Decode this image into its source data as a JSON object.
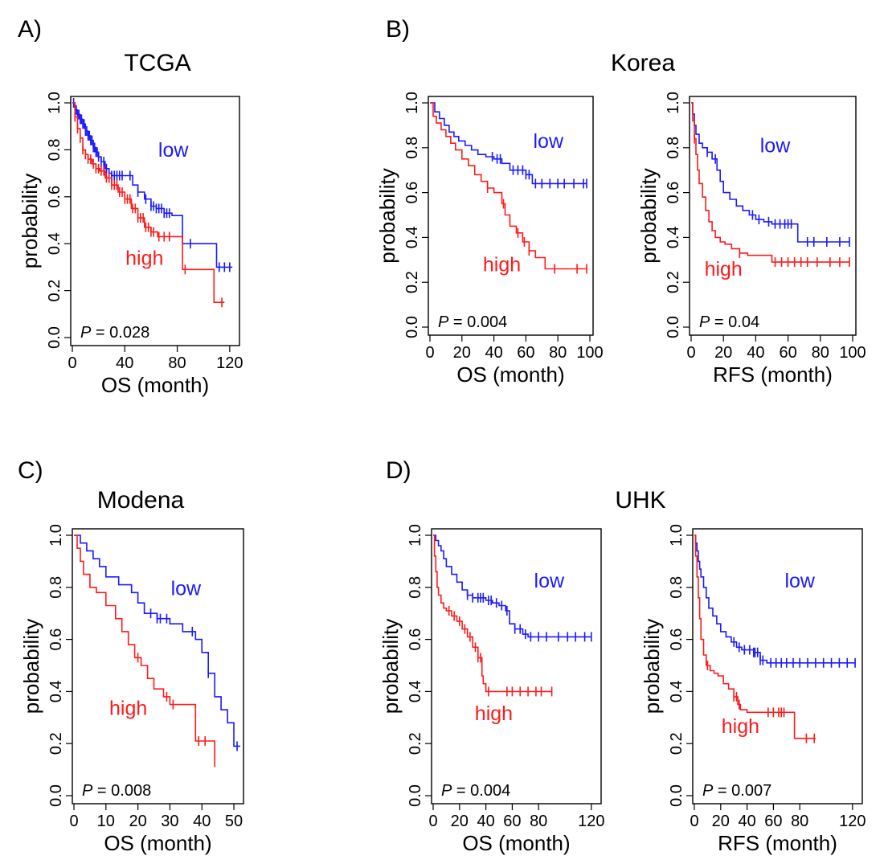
{
  "panel_labels": [
    "A)",
    "B)",
    "C)",
    "D)"
  ],
  "group_titles": [
    "TCGA",
    "Korea",
    "Modena",
    "UHK"
  ],
  "colors": {
    "low": "#1a1aff",
    "high": "#ff1a1a",
    "axis": "#000000"
  },
  "chart_data": [
    {
      "type": "line",
      "title": "TCGA",
      "xlabel": "OS (month)",
      "ylabel": "probability",
      "xlim": [
        0,
        125
      ],
      "ylim": [
        0,
        1
      ],
      "xticks": [
        0,
        40,
        80,
        120
      ],
      "yticks": [
        0.0,
        0.2,
        0.4,
        0.6,
        0.8,
        1.0
      ],
      "pvalue_prefix": "P",
      "pvalue_text": " = 0.028",
      "series": [
        {
          "name": "low",
          "color": "#1a1aff",
          "x": [
            0,
            2,
            4,
            6,
            8,
            10,
            12,
            14,
            16,
            18,
            20,
            22,
            25,
            28,
            30,
            34,
            40,
            46,
            50,
            55,
            60,
            64,
            70,
            76,
            80,
            84,
            96,
            102,
            110,
            122
          ],
          "y": [
            1.0,
            0.97,
            0.95,
            0.93,
            0.91,
            0.88,
            0.86,
            0.84,
            0.81,
            0.79,
            0.77,
            0.75,
            0.72,
            0.7,
            0.69,
            0.69,
            0.69,
            0.65,
            0.62,
            0.59,
            0.56,
            0.55,
            0.53,
            0.52,
            0.52,
            0.4,
            0.4,
            0.4,
            0.3,
            0.3
          ],
          "censor_x": [
            1,
            2,
            3,
            4,
            5,
            6,
            7,
            8,
            9,
            10,
            11,
            12,
            13,
            14,
            15,
            16,
            17,
            18,
            19,
            20,
            22,
            24,
            26,
            28,
            30,
            32,
            34,
            36,
            38,
            44,
            50,
            56,
            60,
            62,
            64,
            66,
            68,
            70,
            72,
            74,
            90,
            112,
            116,
            120
          ]
        },
        {
          "name": "high",
          "color": "#ff1a1a",
          "x": [
            0,
            2,
            4,
            6,
            8,
            10,
            12,
            15,
            18,
            21,
            25,
            30,
            35,
            40,
            45,
            50,
            55,
            60,
            65,
            70,
            80,
            84,
            90,
            100,
            107,
            108,
            116
          ],
          "y": [
            1.0,
            0.94,
            0.89,
            0.85,
            0.8,
            0.78,
            0.76,
            0.74,
            0.72,
            0.71,
            0.68,
            0.65,
            0.62,
            0.59,
            0.55,
            0.51,
            0.47,
            0.45,
            0.43,
            0.43,
            0.43,
            0.29,
            0.29,
            0.29,
            0.29,
            0.15,
            0.15
          ],
          "censor_x": [
            2,
            4,
            6,
            8,
            10,
            12,
            14,
            16,
            18,
            20,
            22,
            24,
            26,
            28,
            30,
            32,
            34,
            36,
            38,
            40,
            42,
            44,
            46,
            48,
            50,
            52,
            54,
            56,
            58,
            60,
            62,
            66,
            70,
            74,
            86,
            114
          ]
        }
      ],
      "series_labels": [
        {
          "name": "low",
          "color": "#1a1aff",
          "x": 77,
          "y": 0.77
        },
        {
          "name": "high",
          "color": "#ff1a1a",
          "x": 55,
          "y": 0.31
        }
      ]
    },
    {
      "type": "line",
      "title": "Korea",
      "xlabel": "OS (month)",
      "ylabel": "probability",
      "xlim": [
        0,
        100
      ],
      "ylim": [
        0,
        1
      ],
      "xticks": [
        0,
        20,
        40,
        60,
        80,
        100
      ],
      "yticks": [
        0.0,
        0.2,
        0.4,
        0.6,
        0.8,
        1.0
      ],
      "pvalue_prefix": "P",
      "pvalue_text": " = 0.004",
      "series": [
        {
          "name": "low",
          "color": "#1a1aff",
          "x": [
            0,
            3,
            6,
            9,
            12,
            15,
            18,
            22,
            26,
            30,
            35,
            40,
            45,
            50,
            55,
            60,
            64,
            70,
            80,
            98
          ],
          "y": [
            1.0,
            0.96,
            0.93,
            0.9,
            0.87,
            0.85,
            0.83,
            0.81,
            0.79,
            0.77,
            0.76,
            0.75,
            0.73,
            0.7,
            0.7,
            0.68,
            0.64,
            0.64,
            0.64,
            0.64
          ],
          "censor_x": [
            39,
            42,
            44,
            52,
            55,
            58,
            60,
            62,
            66,
            70,
            75,
            80,
            84,
            90,
            96,
            98
          ]
        },
        {
          "name": "high",
          "color": "#ff1a1a",
          "x": [
            0,
            2,
            4,
            7,
            10,
            13,
            16,
            20,
            24,
            28,
            32,
            36,
            40,
            45,
            47,
            50,
            54,
            58,
            62,
            66,
            72,
            80,
            98
          ],
          "y": [
            1.0,
            0.94,
            0.91,
            0.88,
            0.85,
            0.82,
            0.79,
            0.75,
            0.72,
            0.68,
            0.65,
            0.62,
            0.6,
            0.55,
            0.5,
            0.45,
            0.42,
            0.38,
            0.34,
            0.31,
            0.26,
            0.26,
            0.26
          ],
          "censor_x": [
            36,
            46,
            55,
            59,
            62,
            78,
            92,
            98
          ]
        }
      ],
      "series_labels": [
        {
          "name": "low",
          "color": "#1a1aff",
          "x": 74,
          "y": 0.8
        },
        {
          "name": "high",
          "color": "#ff1a1a",
          "x": 45,
          "y": 0.25
        }
      ]
    },
    {
      "type": "line",
      "title": "",
      "xlabel": "RFS (month)",
      "ylabel": "probability",
      "xlim": [
        0,
        100
      ],
      "ylim": [
        0,
        1
      ],
      "xticks": [
        0,
        20,
        40,
        60,
        80,
        100
      ],
      "yticks": [
        0.0,
        0.2,
        0.4,
        0.6,
        0.8,
        1.0
      ],
      "pvalue_prefix": "P",
      "pvalue_text": " = 0.04",
      "series": [
        {
          "name": "low",
          "color": "#1a1aff",
          "x": [
            0,
            1,
            2,
            3,
            5,
            7,
            10,
            13,
            16,
            18,
            20,
            24,
            28,
            32,
            36,
            40,
            45,
            50,
            55,
            60,
            66,
            70,
            80,
            98
          ],
          "y": [
            1.0,
            0.95,
            0.9,
            0.86,
            0.82,
            0.8,
            0.78,
            0.75,
            0.7,
            0.65,
            0.6,
            0.57,
            0.54,
            0.52,
            0.5,
            0.48,
            0.47,
            0.46,
            0.46,
            0.46,
            0.38,
            0.38,
            0.38,
            0.38
          ],
          "censor_x": [
            10,
            15,
            38,
            42,
            48,
            52,
            55,
            58,
            60,
            62,
            72,
            76,
            84,
            92,
            98
          ]
        },
        {
          "name": "high",
          "color": "#ff1a1a",
          "x": [
            0,
            1,
            2,
            3,
            4,
            5,
            7,
            9,
            11,
            13,
            15,
            18,
            21,
            25,
            30,
            35,
            50,
            60,
            80,
            98
          ],
          "y": [
            1.0,
            0.92,
            0.84,
            0.77,
            0.7,
            0.64,
            0.58,
            0.52,
            0.47,
            0.43,
            0.4,
            0.38,
            0.37,
            0.35,
            0.33,
            0.32,
            0.29,
            0.29,
            0.29,
            0.29
          ],
          "censor_x": [
            2,
            30,
            52,
            56,
            60,
            64,
            68,
            72,
            78,
            86,
            92,
            98
          ]
        }
      ],
      "series_labels": [
        {
          "name": "low",
          "color": "#1a1aff",
          "x": 52,
          "y": 0.78
        },
        {
          "name": "high",
          "color": "#ff1a1a",
          "x": 20,
          "y": 0.23
        }
      ]
    },
    {
      "type": "line",
      "title": "Modena",
      "xlabel": "OS (month)",
      "ylabel": "probability",
      "xlim": [
        0,
        52
      ],
      "ylim": [
        0,
        1
      ],
      "xticks": [
        0,
        10,
        20,
        30,
        40,
        50
      ],
      "yticks": [
        0.0,
        0.2,
        0.4,
        0.6,
        0.8,
        1.0
      ],
      "pvalue_prefix": "P",
      "pvalue_text": " = 0.008",
      "series": [
        {
          "name": "low",
          "color": "#1a1aff",
          "x": [
            0,
            2,
            4,
            6,
            8,
            10,
            14,
            18,
            20,
            22,
            26,
            30,
            34,
            38,
            40,
            42,
            44,
            46,
            48,
            50,
            52
          ],
          "y": [
            1.0,
            0.97,
            0.94,
            0.91,
            0.88,
            0.84,
            0.81,
            0.78,
            0.74,
            0.7,
            0.68,
            0.66,
            0.63,
            0.6,
            0.55,
            0.47,
            0.38,
            0.33,
            0.28,
            0.19,
            0.19
          ],
          "censor_x": [
            24,
            26,
            27,
            29,
            37,
            42,
            51
          ]
        },
        {
          "name": "high",
          "color": "#ff1a1a",
          "x": [
            0,
            1,
            2,
            3,
            5,
            7,
            10,
            13,
            15,
            17,
            19,
            21,
            23,
            25,
            28,
            30,
            37,
            38,
            42,
            44
          ],
          "y": [
            1.0,
            0.95,
            0.9,
            0.85,
            0.8,
            0.78,
            0.73,
            0.68,
            0.63,
            0.58,
            0.53,
            0.5,
            0.45,
            0.41,
            0.38,
            0.35,
            0.35,
            0.21,
            0.21,
            0.11
          ],
          "censor_x": [
            20,
            29,
            31,
            39,
            41
          ]
        }
      ],
      "series_labels": [
        {
          "name": "low",
          "color": "#1a1aff",
          "x": 35,
          "y": 0.77
        },
        {
          "name": "high",
          "color": "#ff1a1a",
          "x": 17,
          "y": 0.31
        }
      ]
    },
    {
      "type": "line",
      "title": "UHK",
      "xlabel": "OS (month)",
      "ylabel": "probability",
      "xlim": [
        0,
        125
      ],
      "ylim": [
        0,
        1
      ],
      "xticks": [
        0,
        20,
        40,
        60,
        80,
        120
      ],
      "yticks": [
        0.0,
        0.2,
        0.4,
        0.6,
        0.8,
        1.0
      ],
      "pvalue_prefix": "P",
      "pvalue_text": " = 0.004",
      "series": [
        {
          "name": "low",
          "color": "#1a1aff",
          "x": [
            0,
            2,
            4,
            6,
            8,
            10,
            14,
            18,
            22,
            26,
            30,
            35,
            40,
            45,
            50,
            55,
            58,
            62,
            68,
            72,
            80,
            90,
            120
          ],
          "y": [
            1.0,
            0.98,
            0.96,
            0.94,
            0.91,
            0.88,
            0.85,
            0.82,
            0.79,
            0.77,
            0.76,
            0.76,
            0.75,
            0.74,
            0.73,
            0.71,
            0.66,
            0.64,
            0.62,
            0.61,
            0.61,
            0.61,
            0.61
          ],
          "censor_x": [
            26,
            30,
            34,
            36,
            38,
            42,
            44,
            48,
            52,
            56,
            62,
            66,
            70,
            74,
            80,
            86,
            95,
            102,
            108,
            115,
            120
          ]
        },
        {
          "name": "high",
          "color": "#ff1a1a",
          "x": [
            0,
            1,
            2,
            3,
            4,
            6,
            8,
            10,
            14,
            18,
            22,
            26,
            30,
            34,
            37,
            38,
            40,
            50,
            60,
            90
          ],
          "y": [
            1.0,
            0.92,
            0.86,
            0.8,
            0.77,
            0.74,
            0.72,
            0.71,
            0.69,
            0.67,
            0.64,
            0.61,
            0.57,
            0.53,
            0.46,
            0.43,
            0.4,
            0.4,
            0.4,
            0.4
          ],
          "censor_x": [
            12,
            16,
            20,
            24,
            28,
            32,
            34,
            36,
            42,
            56,
            60,
            66,
            72,
            78,
            82,
            90
          ]
        }
      ],
      "series_labels": [
        {
          "name": "low",
          "color": "#1a1aff",
          "x": 88,
          "y": 0.8
        },
        {
          "name": "high",
          "color": "#ff1a1a",
          "x": 46,
          "y": 0.29
        }
      ]
    },
    {
      "type": "line",
      "title": "",
      "xlabel": "RFS (month)",
      "ylabel": "probability",
      "xlim": [
        0,
        125
      ],
      "ylim": [
        0,
        1
      ],
      "xticks": [
        0,
        20,
        40,
        60,
        80,
        120
      ],
      "yticks": [
        0.0,
        0.2,
        0.4,
        0.6,
        0.8,
        1.0
      ],
      "pvalue_prefix": "P",
      "pvalue_text": " = 0.007",
      "series": [
        {
          "name": "low",
          "color": "#1a1aff",
          "x": [
            0,
            1,
            2,
            3,
            4,
            5,
            7,
            9,
            11,
            14,
            17,
            20,
            24,
            28,
            32,
            36,
            40,
            45,
            50,
            55,
            60,
            80,
            122
          ],
          "y": [
            1.0,
            0.97,
            0.94,
            0.9,
            0.87,
            0.84,
            0.8,
            0.76,
            0.72,
            0.69,
            0.66,
            0.63,
            0.61,
            0.59,
            0.57,
            0.56,
            0.56,
            0.55,
            0.52,
            0.51,
            0.51,
            0.51,
            0.51
          ],
          "censor_x": [
            30,
            34,
            38,
            42,
            45,
            46,
            48,
            50,
            52,
            58,
            62,
            66,
            70,
            75,
            80,
            86,
            92,
            98,
            104,
            110,
            116,
            122
          ]
        },
        {
          "name": "high",
          "color": "#ff1a1a",
          "x": [
            0,
            1,
            2,
            3,
            4,
            5,
            7,
            9,
            12,
            15,
            18,
            22,
            26,
            30,
            33,
            35,
            40,
            60,
            74,
            76,
            80,
            92
          ],
          "y": [
            1.0,
            0.92,
            0.84,
            0.76,
            0.68,
            0.6,
            0.54,
            0.5,
            0.48,
            0.47,
            0.46,
            0.43,
            0.41,
            0.38,
            0.35,
            0.33,
            0.32,
            0.32,
            0.32,
            0.22,
            0.22,
            0.22
          ],
          "censor_x": [
            10,
            30,
            32,
            34,
            56,
            60,
            64,
            66,
            68,
            85,
            91
          ]
        }
      ],
      "series_labels": [
        {
          "name": "low",
          "color": "#1a1aff",
          "x": 80,
          "y": 0.8
        },
        {
          "name": "high",
          "color": "#ff1a1a",
          "x": 35,
          "y": 0.24
        }
      ]
    }
  ]
}
